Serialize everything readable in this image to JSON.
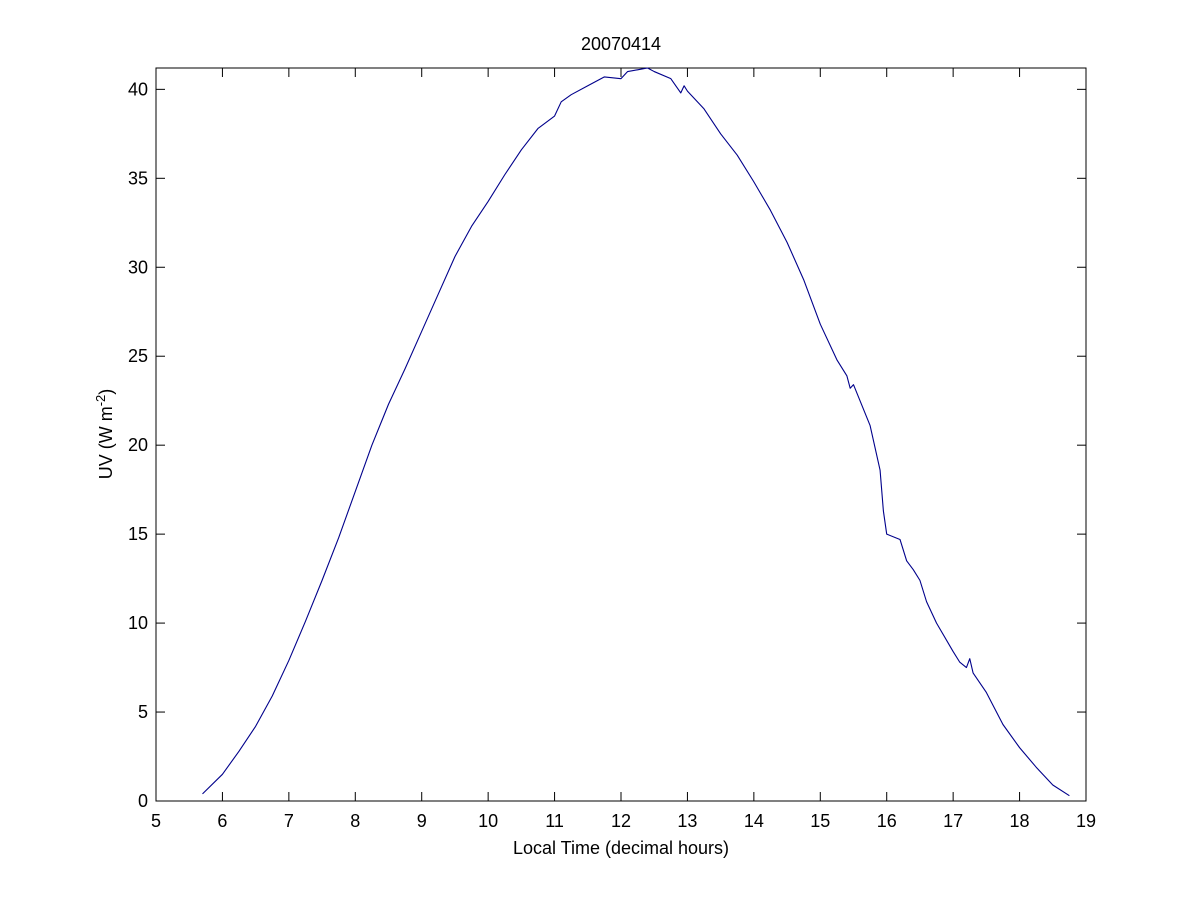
{
  "chart_data": {
    "type": "line",
    "title": "20070414",
    "xlabel": "Local Time (decimal hours)",
    "ylabel": {
      "prefix": "UV (W m",
      "superscript": "-2",
      "suffix": ")"
    },
    "xlim": [
      5,
      19
    ],
    "ylim": [
      0,
      41.2
    ],
    "x_ticks": [
      5,
      6,
      7,
      8,
      9,
      10,
      11,
      12,
      13,
      14,
      15,
      16,
      17,
      18,
      19
    ],
    "y_ticks": [
      0,
      5,
      10,
      15,
      20,
      25,
      30,
      35,
      40
    ],
    "grid": false,
    "legend": "none",
    "line_color": "#00008b",
    "series": [
      {
        "x": [
          5.7,
          6.0,
          6.25,
          6.5,
          6.75,
          7.0,
          7.25,
          7.5,
          7.75,
          8.0,
          8.25,
          8.5,
          8.75,
          9.0,
          9.25,
          9.5,
          9.75,
          10.0,
          10.25,
          10.5,
          10.75,
          11.0,
          11.1,
          11.25,
          11.5,
          11.75,
          12.0,
          12.1,
          12.25,
          12.4,
          12.5,
          12.75,
          12.9,
          12.95,
          13.0,
          13.25,
          13.5,
          13.75,
          14.0,
          14.25,
          14.5,
          14.75,
          15.0,
          15.25,
          15.4,
          15.45,
          15.5,
          15.75,
          15.9,
          15.95,
          16.0,
          16.2,
          16.3,
          16.4,
          16.5,
          16.6,
          16.75,
          17.0,
          17.1,
          17.2,
          17.25,
          17.3,
          17.5,
          17.75,
          18.0,
          18.25,
          18.5,
          18.75
        ],
        "y": [
          0.4,
          1.5,
          2.8,
          4.2,
          5.9,
          7.9,
          10.1,
          12.4,
          14.8,
          17.4,
          20.0,
          22.3,
          24.3,
          26.4,
          28.5,
          30.6,
          32.3,
          33.7,
          35.2,
          36.6,
          37.8,
          38.5,
          39.3,
          39.7,
          40.2,
          40.7,
          40.6,
          41.0,
          41.1,
          41.2,
          41.0,
          40.6,
          39.8,
          40.2,
          39.9,
          38.9,
          37.5,
          36.3,
          34.8,
          33.2,
          31.4,
          29.3,
          26.8,
          24.8,
          23.9,
          23.2,
          23.4,
          21.1,
          18.6,
          16.3,
          15.0,
          14.7,
          13.5,
          13.0,
          12.4,
          11.2,
          10.0,
          8.4,
          7.8,
          7.5,
          8.0,
          7.2,
          6.1,
          4.3,
          3.0,
          1.9,
          0.9,
          0.3
        ]
      }
    ]
  }
}
